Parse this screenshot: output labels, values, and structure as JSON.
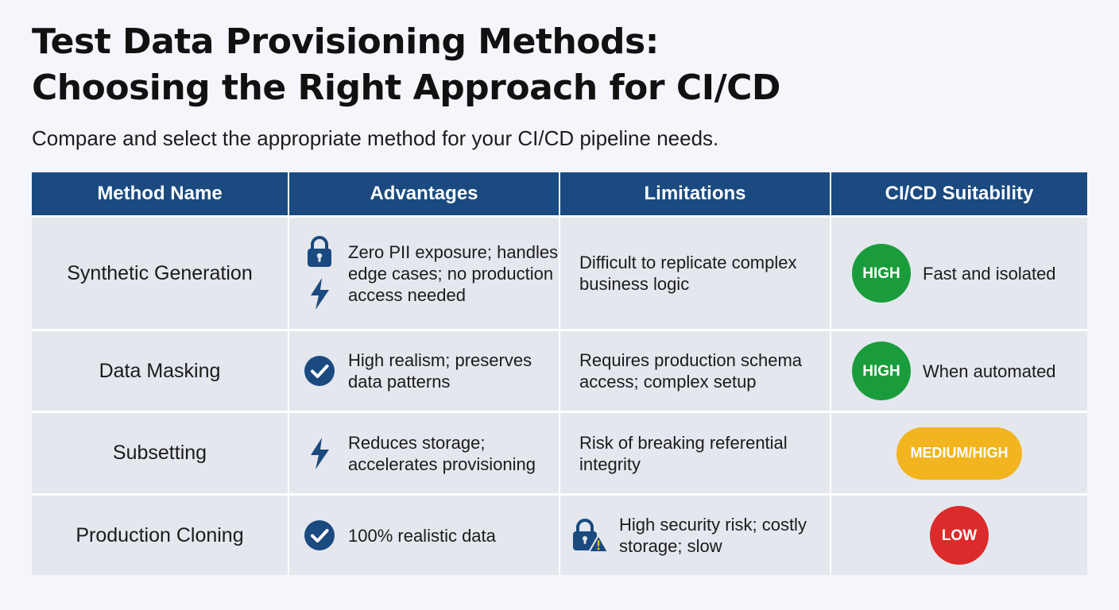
{
  "header": {
    "title_line1": "Test Data Provisioning Methods:",
    "title_line2": "Choosing the Right Approach for CI/CD",
    "subtitle": "Compare and select the appropriate method for your CI/CD pipeline needs."
  },
  "table": {
    "columns": [
      "Method Name",
      "Advantages",
      "Limitations",
      "CI/CD Suitability"
    ],
    "rows": [
      {
        "method": "Synthetic Generation",
        "advantages": "Zero PII exposure; handles edge cases; no production access needed",
        "advantage_icons": [
          "lock-icon",
          "lightning-icon"
        ],
        "limitations": "Difficult to replicate complex business logic",
        "suitability": "HIGH",
        "suitability_color": "#1a9c3c",
        "suitability_note": "Fast and isolated"
      },
      {
        "method": "Data Masking",
        "advantages": "High realism; preserves data patterns",
        "advantage_icons": [
          "check-circle-icon"
        ],
        "limitations": "Requires production schema access; complex setup",
        "suitability": "HIGH",
        "suitability_color": "#1a9c3c",
        "suitability_note": "When automated"
      },
      {
        "method": "Subsetting",
        "advantages": "Reduces storage; accelerates provisioning",
        "advantage_icons": [
          "lightning-icon"
        ],
        "limitations": "Risk of breaking referential integrity",
        "suitability": "MEDIUM/HIGH",
        "suitability_color": "#f2b51f",
        "suitability_note": ""
      },
      {
        "method": "Production Cloning",
        "advantages": "100% realistic data",
        "advantage_icons": [
          "check-circle-icon"
        ],
        "limitations": "High security risk; costly storage; slow",
        "limitation_icons": [
          "lock-warning-icon"
        ],
        "suitability": "LOW",
        "suitability_color": "#dc2b2b",
        "suitability_note": ""
      }
    ]
  },
  "colors": {
    "header_bg": "#1a4a7f",
    "cell_bg": "#e4e7ee",
    "icon": "#1a4a7f",
    "warning": "#f2b51f"
  }
}
